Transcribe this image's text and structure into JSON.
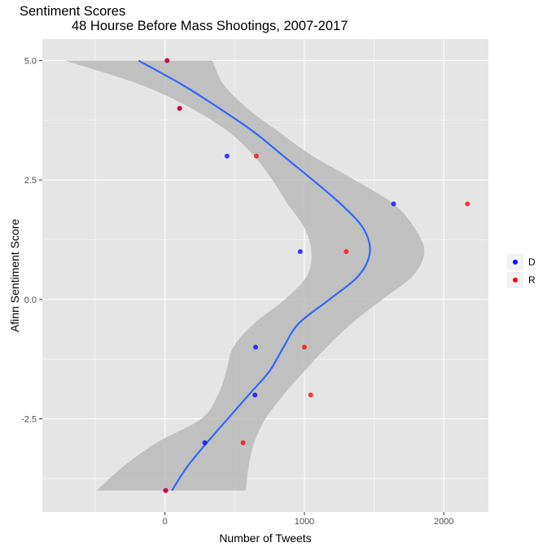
{
  "chart_data": {
    "type": "scatter",
    "title": "Sentiment Scores",
    "subtitle": "48 Hourse Before Mass Shootings, 2007-2017",
    "xlabel": "Number of Tweets",
    "ylabel": "Afinn Sentiment Score",
    "xlim": [
      -880,
      2320
    ],
    "ylim": [
      -4.45,
      5.45
    ],
    "x_ticks": [
      {
        "value": 0,
        "label": "0"
      },
      {
        "value": 1000,
        "label": "1000"
      },
      {
        "value": 2000,
        "label": "2000"
      }
    ],
    "y_ticks": [
      {
        "value": 5.0,
        "label": "5.0"
      },
      {
        "value": 2.5,
        "label": "2.5"
      },
      {
        "value": 0.0,
        "label": "0.0"
      },
      {
        "value": -2.5,
        "label": "-2.5"
      }
    ],
    "grid": true,
    "legend_position": "right",
    "colors": {
      "panel": "#e5e5e5",
      "grid": "#ffffff",
      "ribbon": "#b3b3b3",
      "smooth": "#3366ff"
    },
    "series": [
      {
        "name": "D",
        "color": "#0000ff",
        "points": [
          {
            "x": 15,
            "y": 5
          },
          {
            "x": 105,
            "y": 4
          },
          {
            "x": 445,
            "y": 3
          },
          {
            "x": 1640,
            "y": 2
          },
          {
            "x": 970,
            "y": 1
          },
          {
            "x": 650,
            "y": -1
          },
          {
            "x": 645,
            "y": -2
          },
          {
            "x": 285,
            "y": -3
          },
          {
            "x": 5,
            "y": -4
          }
        ]
      },
      {
        "name": "R",
        "color": "#ff0000",
        "points": [
          {
            "x": 15,
            "y": 5
          },
          {
            "x": 105,
            "y": 4
          },
          {
            "x": 655,
            "y": 3
          },
          {
            "x": 2170,
            "y": 2
          },
          {
            "x": 1300,
            "y": 1
          },
          {
            "x": 1000,
            "y": -1
          },
          {
            "x": 1045,
            "y": -2
          },
          {
            "x": 560,
            "y": -3
          },
          {
            "x": 5,
            "y": -4
          }
        ]
      }
    ],
    "smooth": {
      "fit": [
        {
          "y": 5.0,
          "x": -190
        },
        {
          "y": 4.5,
          "x": 120
        },
        {
          "y": 4.0,
          "x": 390
        },
        {
          "y": 3.5,
          "x": 640
        },
        {
          "y": 3.0,
          "x": 850
        },
        {
          "y": 2.5,
          "x": 1060
        },
        {
          "y": 2.0,
          "x": 1260
        },
        {
          "y": 1.5,
          "x": 1420
        },
        {
          "y": 1.0,
          "x": 1470
        },
        {
          "y": 0.5,
          "x": 1390
        },
        {
          "y": 0.0,
          "x": 1180
        },
        {
          "y": -0.5,
          "x": 960
        },
        {
          "y": -1.0,
          "x": 850
        },
        {
          "y": -1.5,
          "x": 750
        },
        {
          "y": -2.0,
          "x": 600
        },
        {
          "y": -2.5,
          "x": 450
        },
        {
          "y": -3.0,
          "x": 300
        },
        {
          "y": -3.5,
          "x": 160
        },
        {
          "y": -4.0,
          "x": 50
        }
      ],
      "ribbon_upper": [
        {
          "y": 5.0,
          "x": 340
        },
        {
          "y": 4.5,
          "x": 420
        },
        {
          "y": 4.0,
          "x": 590
        },
        {
          "y": 3.5,
          "x": 820
        },
        {
          "y": 3.0,
          "x": 1060
        },
        {
          "y": 2.5,
          "x": 1360
        },
        {
          "y": 2.0,
          "x": 1640
        },
        {
          "y": 1.5,
          "x": 1790
        },
        {
          "y": 1.0,
          "x": 1860
        },
        {
          "y": 0.5,
          "x": 1780
        },
        {
          "y": 0.0,
          "x": 1560
        },
        {
          "y": -0.5,
          "x": 1340
        },
        {
          "y": -1.0,
          "x": 1160
        },
        {
          "y": -1.5,
          "x": 1000
        },
        {
          "y": -2.0,
          "x": 850
        },
        {
          "y": -2.5,
          "x": 720
        },
        {
          "y": -3.0,
          "x": 640
        },
        {
          "y": -3.5,
          "x": 600
        },
        {
          "y": -4.0,
          "x": 580
        }
      ],
      "ribbon_lower": [
        {
          "y": 5.0,
          "x": -720
        },
        {
          "y": 4.5,
          "x": -180
        },
        {
          "y": 4.0,
          "x": 190
        },
        {
          "y": 3.5,
          "x": 460
        },
        {
          "y": 3.0,
          "x": 640
        },
        {
          "y": 2.5,
          "x": 770
        },
        {
          "y": 2.0,
          "x": 880
        },
        {
          "y": 1.5,
          "x": 1000
        },
        {
          "y": 1.0,
          "x": 1050
        },
        {
          "y": 0.5,
          "x": 1020
        },
        {
          "y": 0.0,
          "x": 860
        },
        {
          "y": -0.5,
          "x": 640
        },
        {
          "y": -1.0,
          "x": 490
        },
        {
          "y": -1.5,
          "x": 440
        },
        {
          "y": -2.0,
          "x": 380
        },
        {
          "y": -2.5,
          "x": 260
        },
        {
          "y": -3.0,
          "x": -60
        },
        {
          "y": -3.5,
          "x": -300
        },
        {
          "y": -4.0,
          "x": -490
        }
      ]
    }
  }
}
